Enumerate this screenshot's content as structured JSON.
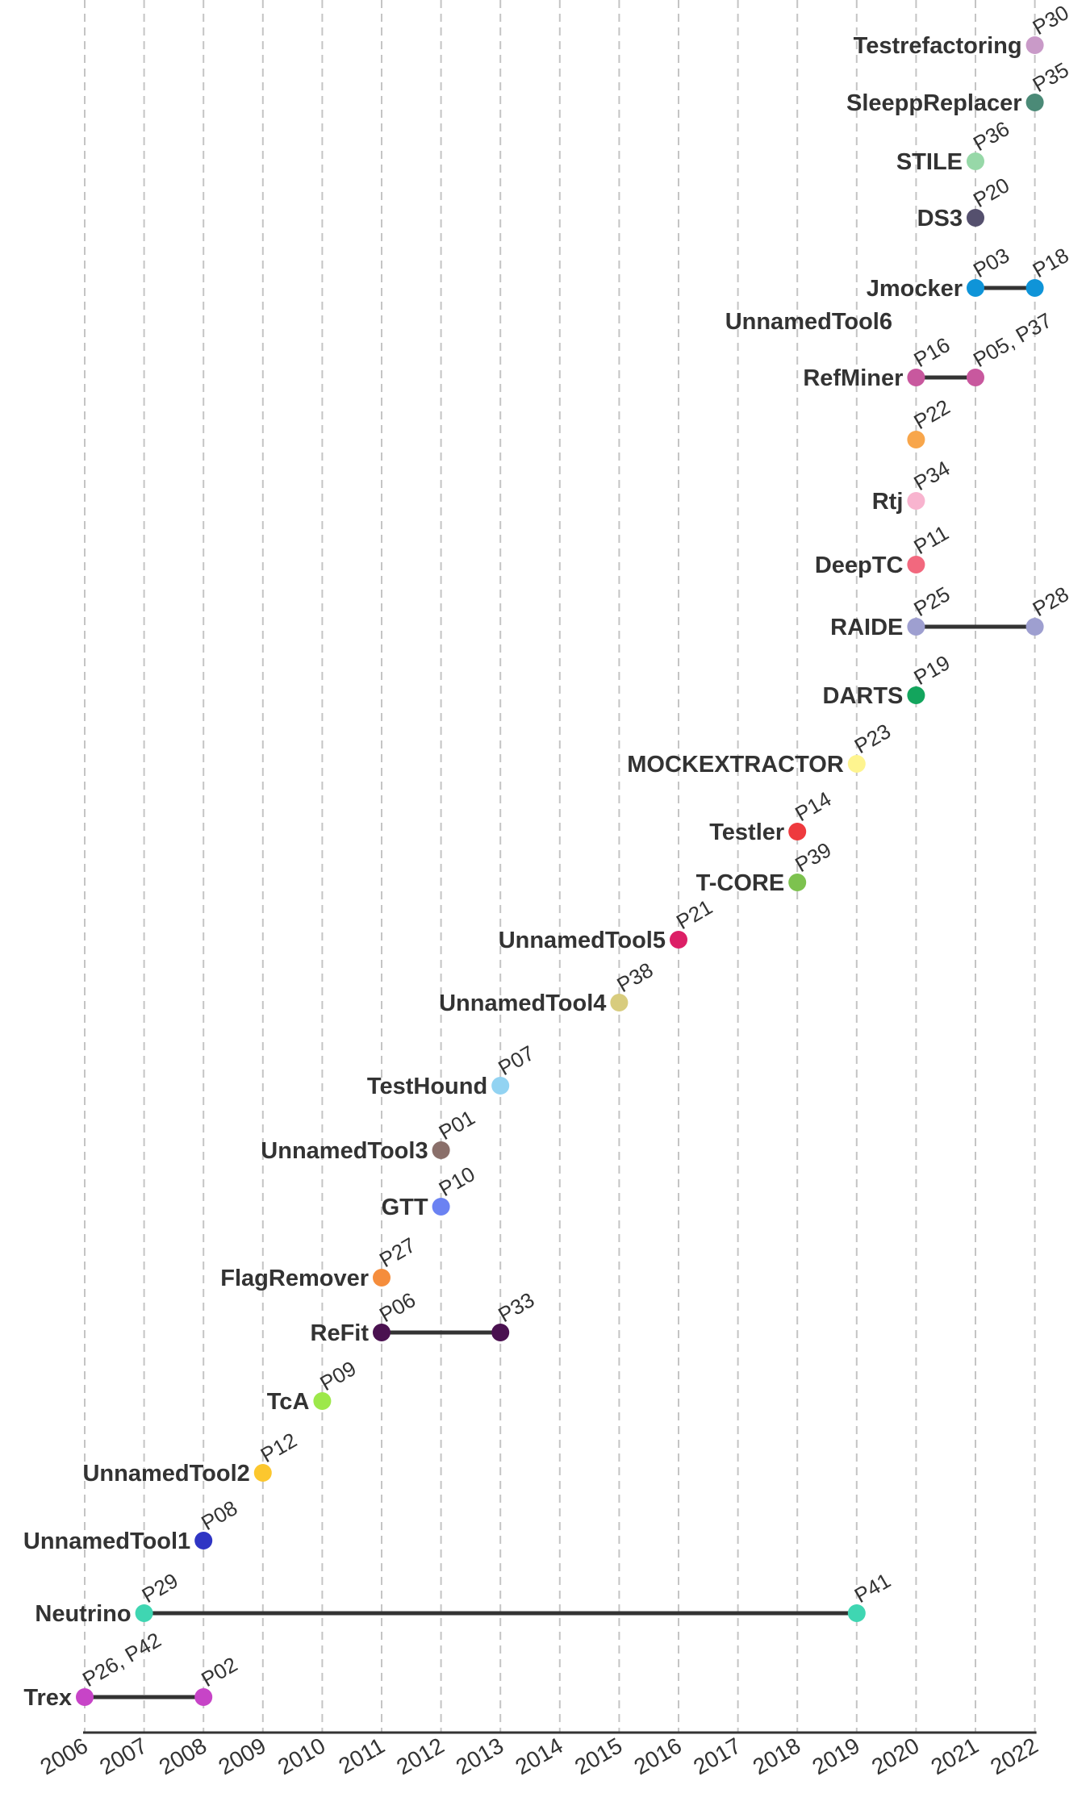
{
  "chart_data": {
    "type": "scatter",
    "title": "",
    "xlabel": "",
    "ylabel": "",
    "x_ticks": [
      "2006",
      "2007",
      "2008",
      "2009",
      "2010",
      "2011",
      "2012",
      "2013",
      "2014",
      "2015",
      "2016",
      "2017",
      "2018",
      "2019",
      "2020",
      "2021",
      "2022"
    ],
    "xlim": [
      2006,
      2022
    ],
    "grid": "vertical dashed",
    "tools": [
      {
        "name": "Trex",
        "points": [
          {
            "year": 2006,
            "label": "P26, P42"
          },
          {
            "year": 2008,
            "label": "P02"
          }
        ],
        "color": "#c744c7"
      },
      {
        "name": "Neutrino",
        "points": [
          {
            "year": 2007,
            "label": "P29"
          },
          {
            "year": 2019,
            "label": "P41"
          }
        ],
        "color": "#3fd6b2"
      },
      {
        "name": "UnnamedTool1",
        "points": [
          {
            "year": 2008,
            "label": "P08"
          }
        ],
        "color": "#2f35c4"
      },
      {
        "name": "UnnamedTool2",
        "points": [
          {
            "year": 2009,
            "label": "P12"
          }
        ],
        "color": "#fcc72e"
      },
      {
        "name": "TcA",
        "points": [
          {
            "year": 2010,
            "label": "P09"
          }
        ],
        "color": "#9de84a"
      },
      {
        "name": "ReFit",
        "points": [
          {
            "year": 2011,
            "label": "P06"
          },
          {
            "year": 2013,
            "label": "P33"
          }
        ],
        "color": "#4a1150"
      },
      {
        "name": "FlagRemover",
        "points": [
          {
            "year": 2011,
            "label": "P27"
          }
        ],
        "color": "#f58d3c"
      },
      {
        "name": "GTT",
        "points": [
          {
            "year": 2012,
            "label": "P10"
          }
        ],
        "color": "#6b82f2"
      },
      {
        "name": "UnnamedTool3",
        "points": [
          {
            "year": 2012,
            "label": "P01"
          }
        ],
        "color": "#8a6f6a"
      },
      {
        "name": "TestHound",
        "points": [
          {
            "year": 2013,
            "label": "P07"
          }
        ],
        "color": "#92d3f2"
      },
      {
        "name": "UnnamedTool4",
        "points": [
          {
            "year": 2015,
            "label": "P38"
          }
        ],
        "color": "#d8cc7e"
      },
      {
        "name": "UnnamedTool5",
        "points": [
          {
            "year": 2016,
            "label": "P21"
          }
        ],
        "color": "#dc1f66"
      },
      {
        "name": "T-CORE",
        "points": [
          {
            "year": 2018,
            "label": "P39"
          }
        ],
        "color": "#7dc24f"
      },
      {
        "name": "Testler",
        "points": [
          {
            "year": 2018,
            "label": "P14"
          }
        ],
        "color": "#ee3a3e"
      },
      {
        "name": "MOCKEXTRACTOR",
        "points": [
          {
            "year": 2019,
            "label": "P23"
          }
        ],
        "color": "#fef48f"
      },
      {
        "name": "DARTS",
        "points": [
          {
            "year": 2020,
            "label": "P19"
          }
        ],
        "color": "#13a55d"
      },
      {
        "name": "RAIDE",
        "points": [
          {
            "year": 2020,
            "label": "P25"
          },
          {
            "year": 2022,
            "label": "P28"
          }
        ],
        "color": "#9e9fd0"
      },
      {
        "name": "DeepTC",
        "points": [
          {
            "year": 2020,
            "label": "P11"
          }
        ],
        "color": "#f2687e"
      },
      {
        "name": "Rtj",
        "points": [
          {
            "year": 2020,
            "label": "P34"
          }
        ],
        "color": "#f8b4cf"
      },
      {
        "name": "UnnamedTool6",
        "points": [
          {
            "year": 2020,
            "label": "P22"
          }
        ],
        "color": "#f8a64b"
      },
      {
        "name": "RefMiner",
        "points": [
          {
            "year": 2020,
            "label": "P16"
          },
          {
            "year": 2021,
            "label": "P05, P37"
          }
        ],
        "color": "#c8589e"
      },
      {
        "name": "Jmocker",
        "points": [
          {
            "year": 2021,
            "label": "P03"
          },
          {
            "year": 2022,
            "label": "P18"
          }
        ],
        "color": "#0f94d8"
      },
      {
        "name": "DS3",
        "points": [
          {
            "year": 2021,
            "label": "P20"
          }
        ],
        "color": "#55506e"
      },
      {
        "name": "STILE",
        "points": [
          {
            "year": 2021,
            "label": "P36"
          }
        ],
        "color": "#97d8a8"
      },
      {
        "name": "SleeppReplacer",
        "points": [
          {
            "year": 2022,
            "label": "P35"
          }
        ],
        "color": "#4b8a77"
      },
      {
        "name": "Testrefactoring",
        "points": [
          {
            "year": 2022,
            "label": "P30"
          }
        ],
        "color": "#c99ac8"
      }
    ]
  }
}
